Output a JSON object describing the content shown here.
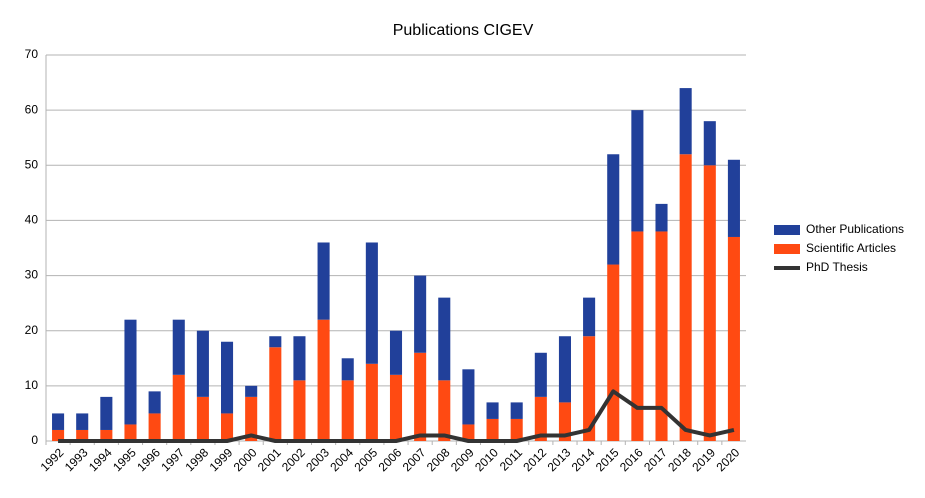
{
  "chart_data": {
    "type": "bar",
    "stacked": true,
    "title": "Publications CIGEV",
    "categories": [
      "1992",
      "1993",
      "1994",
      "1995",
      "1996",
      "1997",
      "1998",
      "1999",
      "2000",
      "2001",
      "2002",
      "2003",
      "2004",
      "2005",
      "2006",
      "2007",
      "2008",
      "2009",
      "2010",
      "2011",
      "2012",
      "2013",
      "2014",
      "2015",
      "2016",
      "2017",
      "2018",
      "2019",
      "2020"
    ],
    "series": [
      {
        "name": "Other Publications",
        "type": "bar",
        "color": "#21409a",
        "values": [
          3,
          3,
          6,
          19,
          4,
          10,
          12,
          13,
          2,
          2,
          8,
          14,
          4,
          22,
          8,
          14,
          15,
          10,
          3,
          3,
          8,
          12,
          7,
          20,
          22,
          5,
          12,
          8,
          14
        ]
      },
      {
        "name": "Scientific Articles",
        "type": "bar",
        "color": "#ff4a12",
        "values": [
          2,
          2,
          2,
          3,
          5,
          12,
          8,
          5,
          8,
          17,
          11,
          22,
          11,
          14,
          12,
          16,
          11,
          3,
          4,
          4,
          8,
          7,
          19,
          32,
          38,
          38,
          52,
          50,
          37
        ]
      },
      {
        "name": "PhD Thesis",
        "type": "line",
        "color": "#333333",
        "values": [
          0,
          0,
          0,
          0,
          0,
          0,
          0,
          0,
          1,
          0,
          0,
          0,
          0,
          0,
          0,
          1,
          1,
          0,
          0,
          0,
          1,
          1,
          2,
          9,
          6,
          6,
          2,
          1,
          2
        ]
      }
    ],
    "ylim": [
      0,
      70
    ],
    "yticks": [
      0,
      10,
      20,
      30,
      40,
      50,
      60,
      70
    ],
    "grid": true,
    "legend": "right"
  }
}
